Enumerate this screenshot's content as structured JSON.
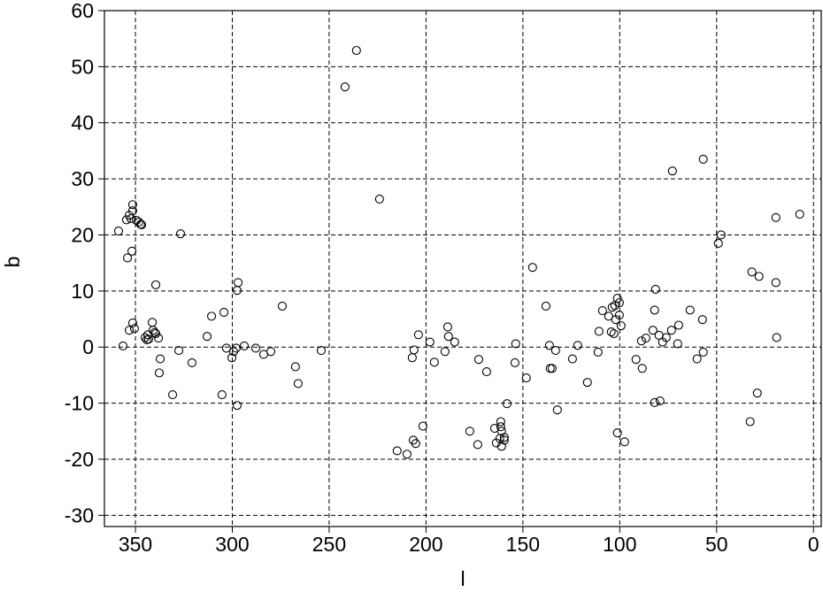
{
  "chart_data": {
    "type": "scatter",
    "x_label": "l",
    "y_label": "b",
    "xlim": [
      366,
      -4
    ],
    "ylim": [
      -32,
      60
    ],
    "xticks": [
      350,
      300,
      250,
      200,
      150,
      100,
      50,
      0
    ],
    "yticks": [
      -30,
      -20,
      -10,
      0,
      10,
      20,
      30,
      40,
      50,
      60
    ],
    "grid": true,
    "color": "#000000",
    "x": [
      358.7,
      356.4,
      354.6,
      353.2,
      351.4,
      351.4,
      352.3,
      349.5,
      348.2,
      346.8,
      347.3,
      354.1,
      351.8,
      353.2,
      351.4,
      350.5,
      345.0,
      344.1,
      343.2,
      343.6,
      341.3,
      340.9,
      340.0,
      339.5,
      338.1,
      337.2,
      337.7,
      339.5,
      330.8,
      327.6,
      326.7,
      320.8,
      313.0,
      310.7,
      304.3,
      305.3,
      303.0,
      300.2,
      299.3,
      298.0,
      297.5,
      297.0,
      297.5,
      293.8,
      287.9,
      283.8,
      280.1,
      274.2,
      267.4,
      266.0,
      254.1,
      241.8,
      235.9,
      224.0,
      214.9,
      209.8,
      207.1,
      206.2,
      203.9,
      206.6,
      205.3,
      201.6,
      198.0,
      195.7,
      190.2,
      188.8,
      188.4,
      185.2,
      177.4,
      173.3,
      172.8,
      168.7,
      164.6,
      163.7,
      161.9,
      161.4,
      161.4,
      161.0,
      161.0,
      159.6,
      159.6,
      158.2,
      154.1,
      153.7,
      148.2,
      145.0,
      138.1,
      136.3,
      135.9,
      134.9,
      133.1,
      132.2,
      124.4,
      121.7,
      116.7,
      111.2,
      110.7,
      108.9,
      105.7,
      104.4,
      103.9,
      103.0,
      102.5,
      102.1,
      101.2,
      100.2,
      100.2,
      99.3,
      101.2,
      97.5,
      91.6,
      88.8,
      88.4,
      86.5,
      82.9,
      82.0,
      81.5,
      82.0,
      79.7,
      79.2,
      77.9,
      76.0,
      73.3,
      72.8,
      69.6,
      70.1,
      63.7,
      60.1,
      56.9,
      57.3,
      56.9,
      49.1,
      47.7,
      31.8,
      32.7,
      29.0,
      28.1,
      19.4,
      19.4,
      19.0,
      7.1
    ],
    "y": [
      20.7,
      0.2,
      22.7,
      23.5,
      25.4,
      24.3,
      22.9,
      22.6,
      22.3,
      21.8,
      21.9,
      15.9,
      17.1,
      3.0,
      4.3,
      3.3,
      1.7,
      1.3,
      1.4,
      2.2,
      4.4,
      3.0,
      2.6,
      2.4,
      1.6,
      -2.1,
      -4.6,
      11.1,
      -8.5,
      -0.6,
      20.2,
      -2.8,
      1.9,
      5.5,
      6.2,
      -8.5,
      -0.2,
      -1.9,
      -0.8,
      -0.2,
      10.1,
      11.5,
      -10.4,
      0.2,
      -0.2,
      -1.3,
      -0.8,
      7.3,
      -3.5,
      -6.5,
      -0.6,
      46.4,
      52.9,
      26.4,
      -18.5,
      -19.1,
      -1.9,
      -0.5,
      2.2,
      -16.6,
      -17.2,
      -14.1,
      0.9,
      -2.7,
      -0.8,
      3.6,
      1.9,
      0.9,
      -15.0,
      -17.4,
      -2.2,
      -4.4,
      -14.5,
      -17.1,
      -16.3,
      -13.3,
      -14.2,
      -15.0,
      -17.7,
      -16.6,
      -16.1,
      -10.1,
      -2.8,
      0.6,
      -5.5,
      14.2,
      7.3,
      0.3,
      -3.8,
      -3.8,
      -0.6,
      -11.2,
      -2.1,
      0.3,
      -6.3,
      -0.9,
      2.8,
      6.5,
      5.5,
      2.7,
      7.1,
      2.4,
      7.4,
      4.9,
      8.7,
      5.7,
      7.9,
      3.8,
      -15.3,
      -16.9,
      -2.2,
      1.1,
      -3.8,
      1.6,
      3.0,
      6.6,
      10.3,
      -9.9,
      2.1,
      -9.6,
      0.9,
      1.7,
      3.0,
      31.4,
      3.9,
      0.6,
      6.6,
      -2.1,
      33.5,
      4.9,
      -0.9,
      18.5,
      20.0,
      13.4,
      -13.3,
      -8.2,
      12.6,
      23.1,
      11.5,
      1.7,
      23.7
    ]
  }
}
